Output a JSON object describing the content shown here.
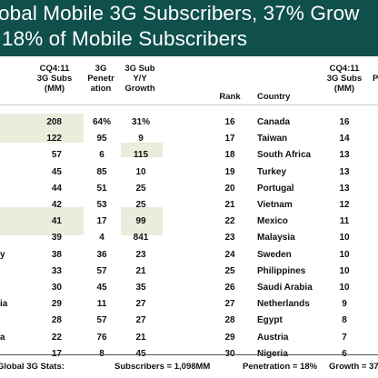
{
  "title": {
    "line1": "obal Mobile 3G Subscribers, 37% Grow",
    "line2": "18% of Mobile Subscribers"
  },
  "left_headers": {
    "subs": "CQ4:11\n3G Subs\n(MM)",
    "pen": "3G\nPenetr\nation",
    "growth": "3G Sub\nY/Y\nGrowth"
  },
  "right_headers": {
    "rank": "Rank",
    "country": "Country",
    "subs": "CQ4:11\n3G Subs\n(MM)",
    "cut": "P"
  },
  "left_rows": [
    {
      "label": "",
      "subs": "208",
      "pen": "64%",
      "growth": "31%"
    },
    {
      "label": "",
      "subs": "122",
      "pen": "95",
      "growth": "9"
    },
    {
      "label": "",
      "subs": "57",
      "pen": "6",
      "growth": "115"
    },
    {
      "label": "",
      "subs": "45",
      "pen": "85",
      "growth": "10"
    },
    {
      "label": "",
      "subs": "44",
      "pen": "51",
      "growth": "25"
    },
    {
      "label": "",
      "subs": "42",
      "pen": "53",
      "growth": "25"
    },
    {
      "label": "",
      "subs": "41",
      "pen": "17",
      "growth": "99"
    },
    {
      "label": "",
      "subs": "39",
      "pen": "4",
      "growth": "841"
    },
    {
      "label": "y",
      "subs": "38",
      "pen": "36",
      "growth": "23"
    },
    {
      "label": "",
      "subs": "33",
      "pen": "57",
      "growth": "21"
    },
    {
      "label": "",
      "subs": "30",
      "pen": "45",
      "growth": "35"
    },
    {
      "label": "ia",
      "subs": "29",
      "pen": "11",
      "growth": "27"
    },
    {
      "label": "",
      "subs": "28",
      "pen": "57",
      "growth": "27"
    },
    {
      "label": "a",
      "subs": "22",
      "pen": "76",
      "growth": "21"
    },
    {
      "label": "",
      "subs": "17",
      "pen": "8",
      "growth": "45"
    }
  ],
  "right_rows": [
    {
      "rank": "16",
      "country": "Canada",
      "subs": "16"
    },
    {
      "rank": "17",
      "country": "Taiwan",
      "subs": "14"
    },
    {
      "rank": "18",
      "country": "South Africa",
      "subs": "13"
    },
    {
      "rank": "19",
      "country": "Turkey",
      "subs": "13"
    },
    {
      "rank": "20",
      "country": "Portugal",
      "subs": "13"
    },
    {
      "rank": "21",
      "country": "Vietnam",
      "subs": "12"
    },
    {
      "rank": "22",
      "country": "Mexico",
      "subs": "11"
    },
    {
      "rank": "23",
      "country": "Malaysia",
      "subs": "10"
    },
    {
      "rank": "24",
      "country": "Sweden",
      "subs": "10"
    },
    {
      "rank": "25",
      "country": "Philippines",
      "subs": "10"
    },
    {
      "rank": "26",
      "country": "Saudi Arabia",
      "subs": "10"
    },
    {
      "rank": "27",
      "country": "Netherlands",
      "subs": "9"
    },
    {
      "rank": "28",
      "country": "Egypt",
      "subs": "8"
    },
    {
      "rank": "29",
      "country": "Austria",
      "subs": "7"
    },
    {
      "rank": "30",
      "country": "Nigeria",
      "subs": "6"
    }
  ],
  "footer": {
    "label": "Global 3G Stats:",
    "subscribers": "Subscribers = 1,098MM",
    "penetration": "Penetration = 18%",
    "growth": "Growth = 37"
  },
  "colors": {
    "header_bg": "#0f4f4c",
    "highlight": "#e8eedb"
  }
}
